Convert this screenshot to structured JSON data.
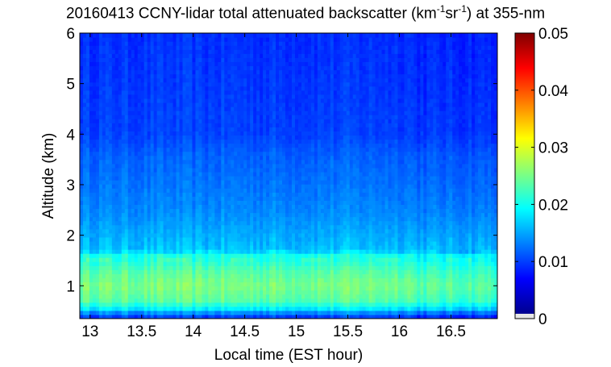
{
  "chart_data": {
    "type": "heatmap",
    "title": {
      "prefix": "20160413 CCNY-lidar total attenuated backscatter (km",
      "sup1": "-1",
      "mid": "sr",
      "sup2": "-1",
      "suffix": ") at 355-nm"
    },
    "xlabel": "Local time (EST hour)",
    "ylabel": "Altitude (km)",
    "xlim": [
      12.9,
      16.95
    ],
    "ylim": [
      0.35,
      6.0
    ],
    "x_ticks": [
      "13",
      "13.5",
      "14",
      "14.5",
      "15",
      "15.5",
      "16",
      "16.5"
    ],
    "y_ticks": [
      "1",
      "2",
      "3",
      "4",
      "5",
      "6"
    ],
    "colorbar": {
      "range": [
        0,
        0.05
      ],
      "ticks": [
        "0",
        "0.01",
        "0.02",
        "0.03",
        "0.04",
        "0.05"
      ],
      "colormap": "jet"
    },
    "profile": [
      {
        "alt": 0.35,
        "value": 0.008
      },
      {
        "alt": 0.45,
        "value": 0.012
      },
      {
        "alt": 0.55,
        "value": 0.018
      },
      {
        "alt": 0.7,
        "value": 0.023
      },
      {
        "alt": 1.0,
        "value": 0.025
      },
      {
        "alt": 1.3,
        "value": 0.023
      },
      {
        "alt": 1.55,
        "value": 0.02
      },
      {
        "alt": 1.7,
        "value": 0.016
      },
      {
        "alt": 1.95,
        "value": 0.015
      },
      {
        "alt": 2.5,
        "value": 0.013
      },
      {
        "alt": 3.0,
        "value": 0.012
      },
      {
        "alt": 3.6,
        "value": 0.011
      },
      {
        "alt": 4.0,
        "value": 0.0095
      },
      {
        "alt": 5.0,
        "value": 0.009
      },
      {
        "alt": 6.0,
        "value": 0.0085
      }
    ],
    "boundary_layer_top_km": 1.6,
    "regime_change_time": 16.15,
    "after_change_offset": -0.0015
  }
}
